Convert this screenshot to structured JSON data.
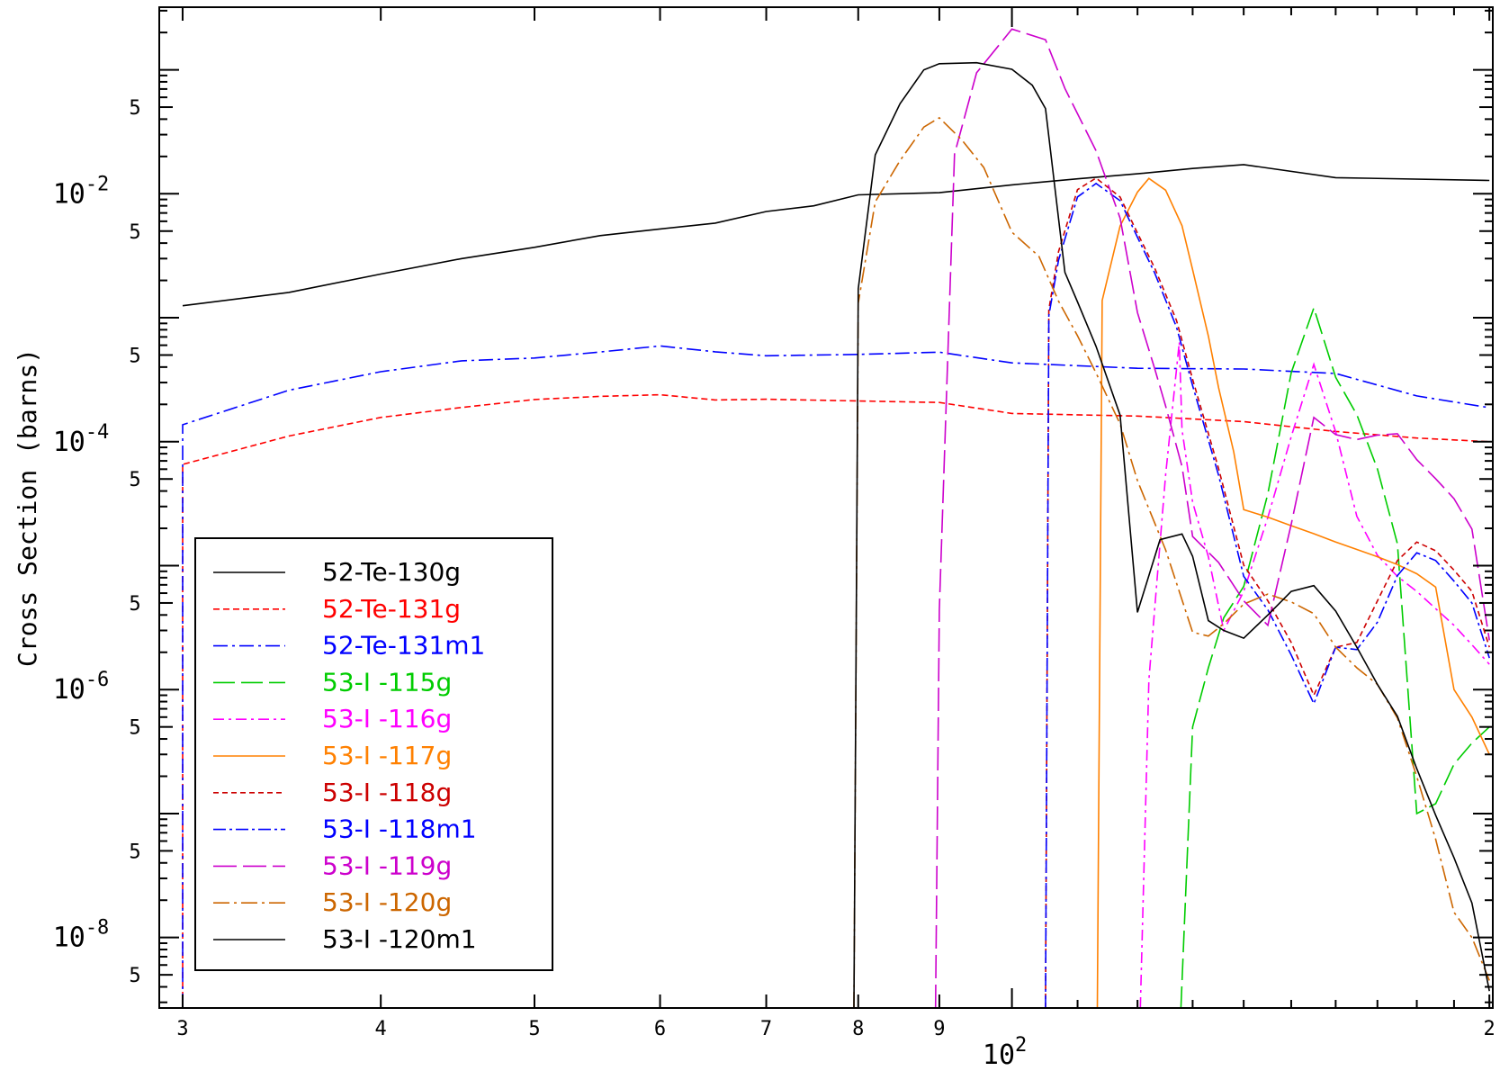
{
  "chart_data": {
    "type": "line",
    "ylabel": "Cross Section (barns)",
    "x_scale": "log",
    "y_scale": "log",
    "xlim": [
      29,
      201
    ],
    "ylim": [
      2.7e-09,
      0.32
    ],
    "x_tick_labels": [
      {
        "x": 30,
        "label": "3"
      },
      {
        "x": 40,
        "label": "4"
      },
      {
        "x": 50,
        "label": "5"
      },
      {
        "x": 60,
        "label": "6"
      },
      {
        "x": 70,
        "label": "7"
      },
      {
        "x": 80,
        "label": "8"
      },
      {
        "x": 90,
        "label": "9"
      },
      {
        "x": 200,
        "label": "2"
      }
    ],
    "x_decade_label": {
      "x": 100,
      "base": "10",
      "exp": "2"
    },
    "y_decade_labels": [
      {
        "y": 0.01,
        "base": "10",
        "exp": "-2"
      },
      {
        "y": 0.0001,
        "base": "10",
        "exp": "-4"
      },
      {
        "y": 1e-06,
        "base": "10",
        "exp": "-6"
      },
      {
        "y": 1e-08,
        "base": "10",
        "exp": "-8"
      }
    ],
    "y_minor_label": "5",
    "legend_position": "bottom-left",
    "series": [
      {
        "name": "52-Te-130g",
        "color": "#000000",
        "dash": "",
        "x": [
          30,
          35,
          40,
          45,
          50,
          55,
          60,
          65,
          70,
          75,
          80,
          90,
          100,
          110,
          120,
          130,
          140,
          160,
          200
        ],
        "y": [
          0.00125,
          0.0016,
          0.00225,
          0.003,
          0.0037,
          0.0046,
          0.0052,
          0.0058,
          0.0072,
          0.008,
          0.0098,
          0.0102,
          0.0118,
          0.0132,
          0.0145,
          0.016,
          0.0172,
          0.0135,
          0.0128
        ]
      },
      {
        "name": "52-Te-131g",
        "color": "#ff0000",
        "dash": "7,4",
        "x": [
          30,
          30,
          35,
          40,
          45,
          50,
          55,
          60,
          65,
          70,
          80,
          90,
          100,
          120,
          140,
          160,
          180,
          200
        ],
        "y": [
          2.7e-09,
          6.56e-05,
          0.000111,
          0.000157,
          0.000189,
          0.000219,
          0.000232,
          0.000239,
          0.000217,
          0.00022,
          0.000213,
          0.000207,
          0.000169,
          0.000161,
          0.000145,
          0.000121,
          0.000107,
          0.0001
        ]
      },
      {
        "name": "52-Te-131m1",
        "color": "#0000ff",
        "dash": "16,5,3,5",
        "x": [
          30,
          30,
          35,
          40,
          45,
          50,
          55,
          60,
          65,
          70,
          80,
          90,
          100,
          120,
          140,
          160,
          180,
          200
        ],
        "y": [
          2.7e-09,
          0.000137,
          0.00026,
          0.000367,
          0.000449,
          0.000473,
          0.000529,
          0.000592,
          0.000531,
          0.000493,
          0.000506,
          0.000527,
          0.000432,
          0.000391,
          0.000386,
          0.000355,
          0.000234,
          0.000188
        ]
      },
      {
        "name": "53-I -115g",
        "color": "#00cc00",
        "dash": "24,7",
        "x": [
          127.8,
          130,
          133,
          136,
          140,
          145,
          150,
          155,
          160,
          165,
          170,
          175,
          180,
          185,
          190,
          195,
          200
        ],
        "y": [
          2.7e-09,
          5e-07,
          1.5e-06,
          3.8e-06,
          6.8e-06,
          3.8e-05,
          0.00036,
          0.0012,
          0.00033,
          0.000165,
          6.02e-05,
          1.5e-05,
          1e-07,
          1.2e-07,
          2.5e-07,
          3.7e-07,
          5e-07
        ]
      },
      {
        "name": "53-I -116g",
        "color": "#ff00ff",
        "dash": "12,5,3,5",
        "x": [
          120.5,
          122,
          125,
          127.5,
          128,
          130,
          133,
          136,
          140,
          145,
          150,
          155,
          160,
          165,
          170,
          175,
          180,
          185,
          190,
          195,
          200
        ],
        "y": [
          2.7e-09,
          1.2e-06,
          5.4e-05,
          0.000636,
          0.000125,
          3.25e-05,
          1.18e-05,
          3e-06,
          6.2e-06,
          2.45e-05,
          0.00011,
          0.00042,
          0.00012,
          2.5e-05,
          1.21e-05,
          8.2e-06,
          6.2e-06,
          4.5e-06,
          3.3e-06,
          2.3e-06,
          1.6e-06
        ]
      },
      {
        "name": "53-I -117g",
        "color": "#ff8000",
        "dash": "",
        "x": [
          113.2,
          114,
          117,
          120,
          122,
          125,
          128,
          130,
          133,
          135,
          138,
          140,
          145,
          150,
          155,
          160,
          165,
          170,
          175,
          180,
          185,
          190,
          195,
          200
        ],
        "y": [
          2.7e-09,
          0.00138,
          0.0055,
          0.0103,
          0.0133,
          0.0107,
          0.00552,
          0.00244,
          0.000711,
          0.000272,
          8.28e-05,
          2.83e-05,
          2.46e-05,
          2.1e-05,
          1.81e-05,
          1.55e-05,
          1.35e-05,
          1.18e-05,
          1.02e-05,
          8.6e-06,
          6.7e-06,
          1e-06,
          6e-07,
          3e-07
        ]
      },
      {
        "name": "53-I -118g",
        "color": "#cc0000",
        "dash": "6,4",
        "x": [
          105,
          105.5,
          107,
          110,
          113,
          117,
          120,
          123,
          127,
          130,
          135,
          140,
          145,
          150,
          155,
          160,
          165,
          170,
          175,
          180,
          185,
          190,
          195,
          200
        ],
        "y": [
          2.7e-09,
          0.00116,
          0.00342,
          0.0108,
          0.0134,
          0.00942,
          0.00482,
          0.00253,
          0.00095,
          0.000319,
          6.05e-05,
          1.01e-05,
          5.2e-06,
          2.4e-06,
          9e-07,
          2.2e-06,
          2.4e-06,
          5.2e-06,
          1.1e-05,
          1.55e-05,
          1.32e-05,
          9.2e-06,
          6.2e-06,
          2.2e-06
        ]
      },
      {
        "name": "53-I -118m1",
        "color": "#0000ff",
        "dash": "14,4,3,4",
        "x": [
          105,
          105.5,
          107,
          110,
          113,
          117,
          120,
          123,
          127,
          130,
          135,
          140,
          145,
          150,
          155,
          160,
          165,
          170,
          175,
          180,
          185,
          190,
          195,
          200
        ],
        "y": [
          2.7e-09,
          0.00104,
          0.00291,
          0.00943,
          0.0121,
          0.0088,
          0.00446,
          0.00231,
          0.00084,
          0.000283,
          5.35e-05,
          8.2e-06,
          4.4e-06,
          1.9e-06,
          7.7e-07,
          2.2e-06,
          2.1e-06,
          3.5e-06,
          8.3e-06,
          1.27e-05,
          1.1e-05,
          7.5e-06,
          5e-06,
          1.8e-06
        ]
      },
      {
        "name": "53-I -119g",
        "color": "#cc00cc",
        "dash": "26,7",
        "x": [
          89.5,
          90,
          92,
          95,
          100,
          105,
          108,
          110,
          113,
          117,
          120,
          123,
          125,
          128,
          130,
          135,
          140,
          145,
          150,
          155,
          160,
          165,
          170,
          175,
          180,
          185,
          190,
          195,
          200
        ],
        "y": [
          2.7e-09,
          4.4e-06,
          0.0209,
          0.0946,
          0.213,
          0.175,
          0.0707,
          0.0442,
          0.0222,
          0.00637,
          0.0011,
          0.000392,
          0.000194,
          6.31e-05,
          1.72e-05,
          1.06e-05,
          5.2e-06,
          3.3e-06,
          2.16e-05,
          0.000157,
          0.000114,
          0.000104,
          0.000113,
          0.000116,
          7.16e-05,
          5.03e-05,
          3.47e-05,
          1.97e-05,
          2.5e-06
        ]
      },
      {
        "name": "53-I -120g",
        "color": "#cc6600",
        "dash": "18,5,3,5",
        "x": [
          79.5,
          80,
          82,
          85,
          88,
          90,
          93,
          96,
          100,
          104,
          107,
          110,
          113,
          117,
          120,
          125,
          130,
          133,
          136,
          140,
          145,
          150,
          155,
          160,
          165,
          170,
          175,
          180,
          185,
          190,
          195,
          200
        ],
        "y": [
          2.7e-09,
          0.00131,
          0.0086,
          0.0185,
          0.0345,
          0.041,
          0.0272,
          0.0163,
          0.0049,
          0.00313,
          0.00136,
          0.000715,
          0.000358,
          0.000139,
          4.85e-05,
          1.34e-05,
          2.9e-06,
          2.7e-06,
          3.4e-06,
          4.9e-06,
          5.9e-06,
          5.1e-06,
          4.1e-06,
          2.2e-06,
          1.5e-06,
          1.1e-06,
          5.9e-07,
          1.99e-07,
          6.2e-08,
          1.6e-08,
          1e-08,
          4.5e-09
        ]
      },
      {
        "name": "53-I -120m1",
        "color": "#000000",
        "dash": "",
        "x": [
          79.5,
          80,
          82,
          85,
          88,
          90,
          95,
          100,
          103,
          105,
          108,
          110,
          113,
          117,
          120,
          124,
          128,
          130,
          133,
          136,
          140,
          145,
          150,
          155,
          160,
          165,
          170,
          175,
          180,
          185,
          190,
          195,
          200
        ],
        "y": [
          2.7e-09,
          0.00171,
          0.0206,
          0.0532,
          0.1,
          0.112,
          0.114,
          0.101,
          0.0751,
          0.0487,
          0.00232,
          0.00134,
          0.000587,
          0.000164,
          4.2e-06,
          1.62e-05,
          1.8e-05,
          1.19e-05,
          3.6e-06,
          3e-06,
          2.6e-06,
          4e-06,
          6.2e-06,
          6.9e-06,
          4.3e-06,
          2.2e-06,
          1.1e-06,
          6.1e-07,
          2.3e-07,
          9.7e-08,
          4.4e-08,
          1.9e-08,
          3.7e-09
        ]
      }
    ]
  }
}
